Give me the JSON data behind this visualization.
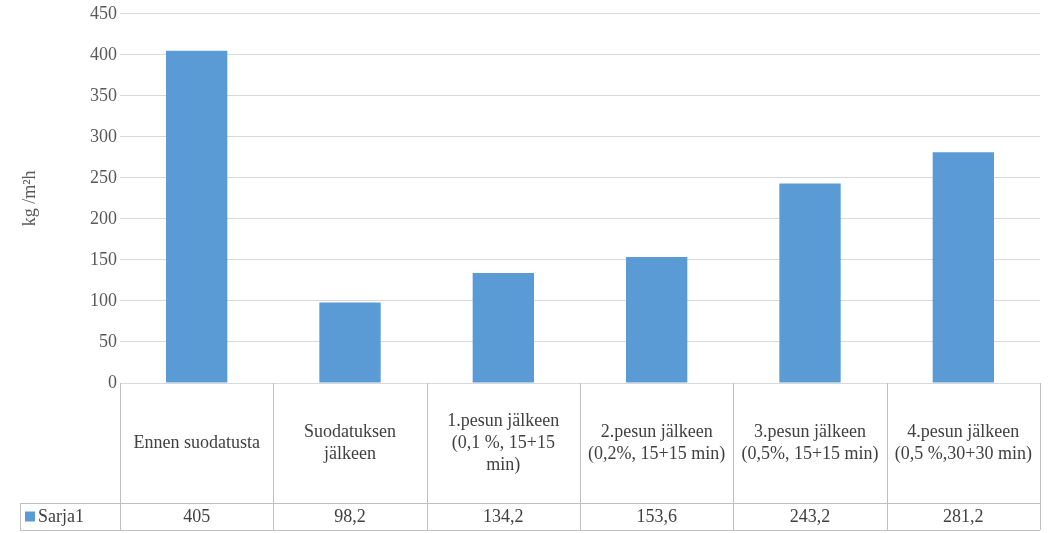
{
  "chart_data": {
    "type": "bar",
    "ylabel": "kg /m²h",
    "categories": [
      "Ennen suodatusta",
      "Suodatuksen jälkeen",
      "1.pesun jälkeen (0,1 %, 15+15 min)",
      "2.pesun jälkeen (0,2%, 15+15 min)",
      "3.pesun jälkeen (0,5%, 15+15 min)",
      "4.pesun jälkeen (0,5 %,30+30 min)"
    ],
    "series": [
      {
        "name": "Sarja1",
        "color": "#5b9bd5",
        "values": [
          405,
          98.2,
          134.2,
          153.6,
          243.2,
          281.2
        ],
        "value_labels": [
          "405",
          "98,2",
          "134,2",
          "153,6",
          "243,2",
          "281,2"
        ]
      }
    ],
    "ylim": [
      0,
      450
    ],
    "yticks": [
      0,
      50,
      100,
      150,
      200,
      250,
      300,
      350,
      400,
      450
    ],
    "grid": "y",
    "legend": "bottom"
  }
}
